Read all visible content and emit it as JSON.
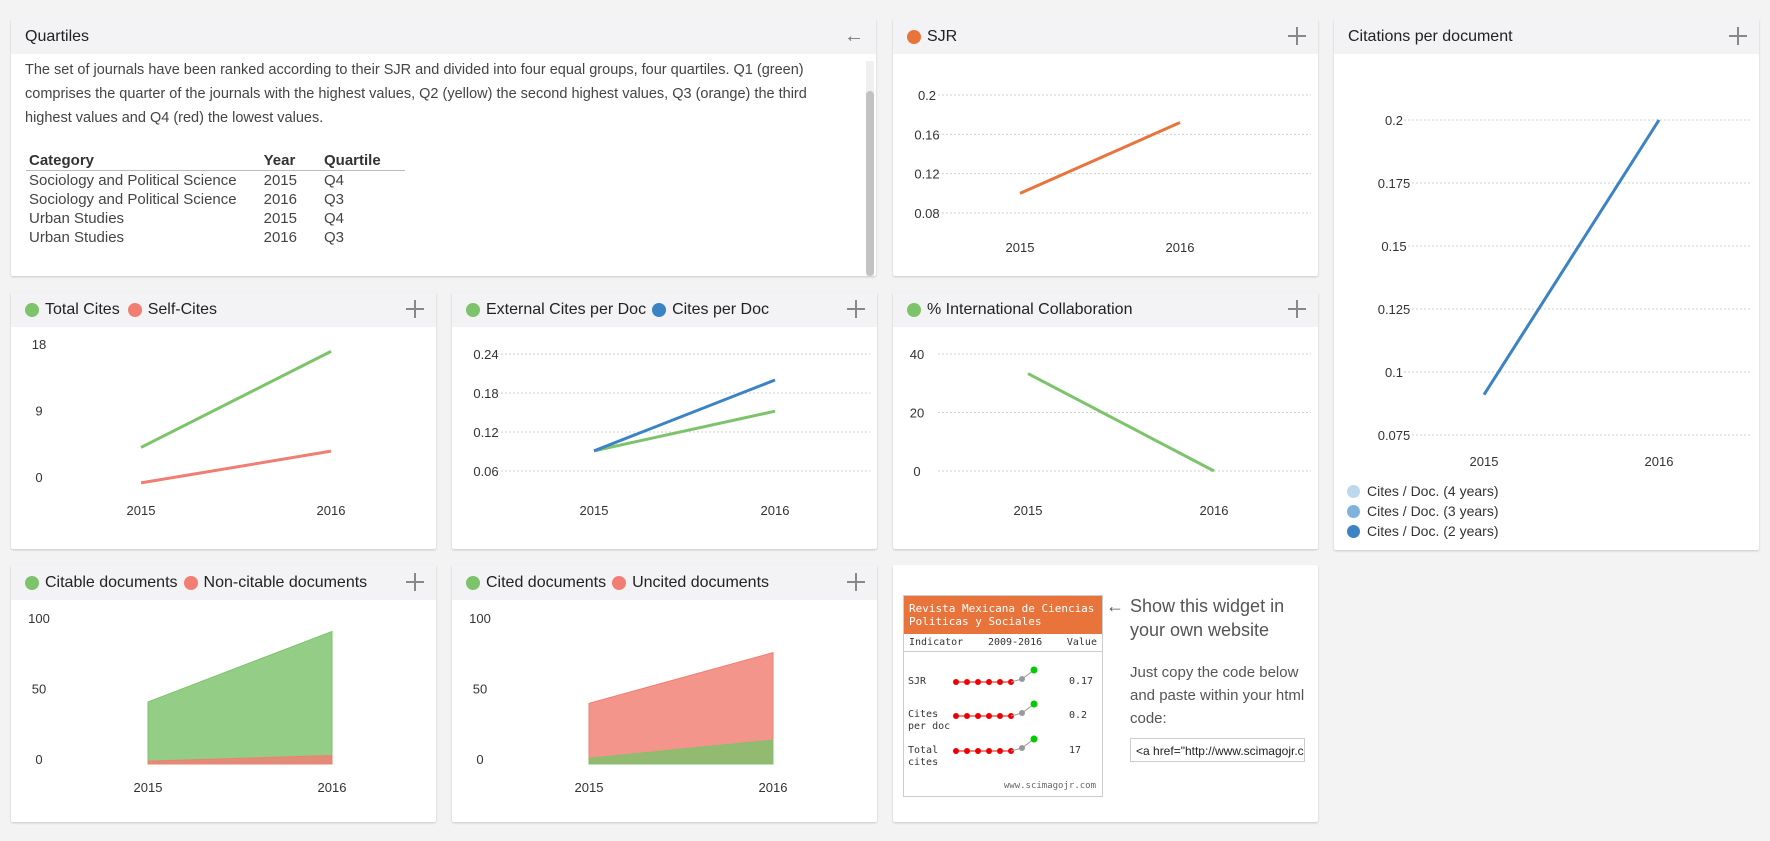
{
  "quartiles": {
    "title": "Quartiles",
    "description": "The set of journals have been ranked according to their SJR and divided into four equal groups, four quartiles. Q1 (green) comprises the quarter of the journals with the highest values, Q2 (yellow) the second highest values, Q3 (orange) the third highest values and Q4 (red) the lowest values.",
    "headers": [
      "Category",
      "Year",
      "Quartile"
    ],
    "rows": [
      [
        "Sociology and Political Science",
        "2015",
        "Q4"
      ],
      [
        "Sociology and Political Science",
        "2016",
        "Q3"
      ],
      [
        "Urban Studies",
        "2015",
        "Q4"
      ],
      [
        "Urban Studies",
        "2016",
        "Q3"
      ]
    ]
  },
  "widget_promo": {
    "heading": "Show this widget in your own website",
    "instructions": "Just copy the code below and paste within your html code:",
    "code": "<a href=\"http://www.scimagojr.com",
    "widget_title": "Revista Mexicana de Ciencias Politicas y Sociales",
    "header_indicator": "Indicator",
    "header_range": "2009-2016",
    "header_value": "Value",
    "rows": [
      {
        "label": "SJR",
        "value": "0.17"
      },
      {
        "label": "Cites per doc",
        "value": "0.2"
      },
      {
        "label": "Total cites",
        "value": "17"
      }
    ],
    "footer": "www.scimagojr.com"
  },
  "colors": {
    "green": "#7dc36b",
    "red": "#f17e72",
    "blue": "#3b83c4",
    "orange": "#e8743b",
    "light_blue": "#bdd7ee",
    "mid_blue": "#7fb2dc"
  },
  "chart_data": [
    {
      "id": "sjr",
      "type": "line",
      "title": "SJR",
      "x": [
        "2015",
        "2016"
      ],
      "ylim": [
        0.08,
        0.2
      ],
      "yticks": [
        "0.08",
        "0.12",
        "0.16",
        "0.2"
      ],
      "grid": true,
      "series": [
        {
          "name": "SJR",
          "color": "#e8743b",
          "values": [
            0.1,
            0.172
          ]
        }
      ]
    },
    {
      "id": "citations",
      "type": "line",
      "title": "Citations per document",
      "x": [
        "2015",
        "2016"
      ],
      "ylim": [
        0.075,
        0.2
      ],
      "yticks": [
        "0.075",
        "0.1",
        "0.125",
        "0.15",
        "0.175",
        "0.2"
      ],
      "grid": true,
      "series": [
        {
          "name": "Cites / Doc. (2 years)",
          "color": "#3b83c4",
          "values": [
            0.091,
            0.2
          ]
        }
      ],
      "legend": [
        {
          "name": "Cites / Doc. (4 years)",
          "color": "#bdd7ee"
        },
        {
          "name": "Cites / Doc. (3 years)",
          "color": "#7fb2dc"
        },
        {
          "name": "Cites / Doc. (2 years)",
          "color": "#3b83c4"
        }
      ]
    },
    {
      "id": "totalcites",
      "type": "line",
      "title": "",
      "x": [
        "2015",
        "2016"
      ],
      "ylim": [
        0,
        18
      ],
      "yticks": [
        "0",
        "9",
        "18"
      ],
      "grid": false,
      "series": [
        {
          "name": "Total Cites",
          "color": "#7dc36b",
          "values": [
            4,
            17
          ]
        },
        {
          "name": "Self-Cites",
          "color": "#f17e72",
          "values": [
            -0.8,
            3.5
          ]
        }
      ]
    },
    {
      "id": "extcites",
      "type": "line",
      "title": "",
      "x": [
        "2015",
        "2016"
      ],
      "ylim": [
        0.06,
        0.24
      ],
      "yticks": [
        "0.06",
        "0.12",
        "0.18",
        "0.24"
      ],
      "grid": true,
      "series": [
        {
          "name": "External Cites per Doc",
          "color": "#7dc36b",
          "values": [
            0.091,
            0.152
          ]
        },
        {
          "name": "Cites per Doc",
          "color": "#3b83c4",
          "values": [
            0.091,
            0.2
          ]
        }
      ]
    },
    {
      "id": "intl",
      "type": "line",
      "title": "",
      "x": [
        "2015",
        "2016"
      ],
      "ylim": [
        0,
        40
      ],
      "yticks": [
        "0",
        "20",
        "40"
      ],
      "grid": true,
      "series": [
        {
          "name": "% International Collaboration",
          "color": "#7dc36b",
          "values": [
            33.3,
            0
          ]
        }
      ]
    },
    {
      "id": "citable",
      "type": "area",
      "title": "",
      "x": [
        "2015",
        "2016"
      ],
      "ylim": [
        0,
        100
      ],
      "yticks": [
        "0",
        "50",
        "100"
      ],
      "grid": false,
      "series": [
        {
          "name": "Citable documents",
          "color": "#7dc36b",
          "values": [
            44,
            94
          ]
        },
        {
          "name": "Non-citable documents",
          "color": "#f17e72",
          "values": [
            2,
            6
          ]
        }
      ]
    },
    {
      "id": "cited",
      "type": "area",
      "title": "",
      "x": [
        "2015",
        "2016"
      ],
      "ylim": [
        0,
        100
      ],
      "yticks": [
        "0",
        "50",
        "100"
      ],
      "grid": false,
      "series": [
        {
          "name": "Cited documents",
          "color": "#7dc36b",
          "values": [
            4,
            17
          ]
        },
        {
          "name": "Uncited documents",
          "color": "#f17e72",
          "values": [
            43,
            79
          ]
        }
      ]
    }
  ]
}
